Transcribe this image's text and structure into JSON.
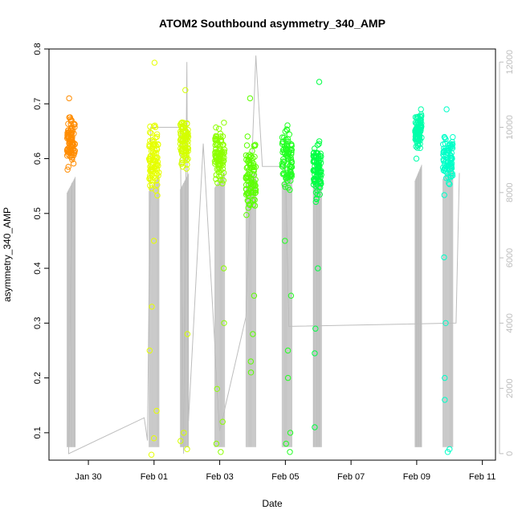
{
  "chart_data": {
    "type": "scatter",
    "title": "ATOM2 Southbound asymmetry_340_AMP",
    "xlabel": "Date",
    "ylabel": "asymmetry_340_AMP",
    "x_ticks": [
      "Jan 30",
      "Feb 01",
      "Feb 03",
      "Feb 05",
      "Feb 07",
      "Feb 09",
      "Feb 11"
    ],
    "y_ticks": [
      "0.1",
      "0.2",
      "0.3",
      "0.4",
      "0.5",
      "0.6",
      "0.7",
      "0.8"
    ],
    "y2_ticks": [
      "0",
      "2000",
      "4000",
      "6000",
      "8000",
      "10000",
      "12000"
    ],
    "xlim_days_from_jan30": [
      -1.2,
      12.4
    ],
    "ylim": [
      0.05,
      0.8
    ],
    "y2lim": [
      -200,
      12400
    ],
    "grid": false,
    "legend": "none",
    "line_color": "#bdbdbd",
    "line_series": [
      {
        "x": 29.5,
        "y": 8300
      },
      {
        "x": 29.4,
        "y": 0
      },
      {
        "x": 31.7,
        "y": 1100
      },
      {
        "x": 31.8,
        "y": 400
      },
      {
        "x": 31.9,
        "y": 10000
      },
      {
        "x": 32.8,
        "y": 10000
      },
      {
        "x": 32.9,
        "y": 0
      },
      {
        "x": 33.0,
        "y": 12000
      },
      {
        "x": 33.05,
        "y": 1000
      },
      {
        "x": 33.5,
        "y": 9500
      },
      {
        "x": 34.0,
        "y": 700
      },
      {
        "x": 34.8,
        "y": 4200
      },
      {
        "x": 35.1,
        "y": 12200
      },
      {
        "x": 35.3,
        "y": 8800
      },
      {
        "x": 36.0,
        "y": 8800
      },
      {
        "x": 36.1,
        "y": 3900
      },
      {
        "x": 41.2,
        "y": 4000
      },
      {
        "x": 41.3,
        "y": 8600
      }
    ],
    "series": [
      {
        "name": "",
        "color": "#ff8c00",
        "x_range": [
          29.35,
          29.6
        ],
        "y_center": 0.635,
        "y_spread": 0.055,
        "outliers": [
          0.58,
          0.71
        ]
      },
      {
        "name": "",
        "color": "#e6ff00",
        "x_range": [
          31.85,
          32.15
        ],
        "y_center": 0.6,
        "y_spread": 0.08,
        "outliers": [
          0.775,
          0.45,
          0.33,
          0.25,
          0.14,
          0.09,
          0.06
        ]
      },
      {
        "name": "",
        "color": "#d4ff00",
        "x_range": [
          32.8,
          33.05
        ],
        "y_center": 0.63,
        "y_spread": 0.06,
        "outliers": [
          0.725,
          0.28,
          0.1,
          0.085,
          0.07
        ]
      },
      {
        "name": "",
        "color": "#8cff00",
        "x_range": [
          33.85,
          34.15
        ],
        "y_center": 0.61,
        "y_spread": 0.07,
        "outliers": [
          0.4,
          0.3,
          0.18,
          0.12,
          0.08,
          0.065
        ]
      },
      {
        "name": "",
        "color": "#5cff00",
        "x_range": [
          34.8,
          35.1
        ],
        "y_center": 0.57,
        "y_spread": 0.09,
        "outliers": [
          0.71,
          0.35,
          0.28,
          0.23,
          0.21
        ]
      },
      {
        "name": "",
        "color": "#22ff22",
        "x_range": [
          35.9,
          36.2
        ],
        "y_center": 0.6,
        "y_spread": 0.08,
        "outliers": [
          0.45,
          0.35,
          0.25,
          0.2,
          0.1,
          0.08,
          0.065
        ]
      },
      {
        "name": "",
        "color": "#00ff44",
        "x_range": [
          36.85,
          37.1
        ],
        "y_center": 0.58,
        "y_spread": 0.07,
        "outliers": [
          0.74,
          0.4,
          0.29,
          0.245,
          0.11
        ]
      },
      {
        "name": "",
        "color": "#00ffaa",
        "x_range": [
          39.95,
          40.15
        ],
        "y_center": 0.65,
        "y_spread": 0.04,
        "outliers": [
          0.69,
          0.6
        ]
      },
      {
        "name": "",
        "color": "#00ffc8",
        "x_range": [
          40.8,
          41.1
        ],
        "y_center": 0.6,
        "y_spread": 0.07,
        "outliers": [
          0.69,
          0.42,
          0.3,
          0.2,
          0.16,
          0.07,
          0.065
        ]
      }
    ]
  }
}
